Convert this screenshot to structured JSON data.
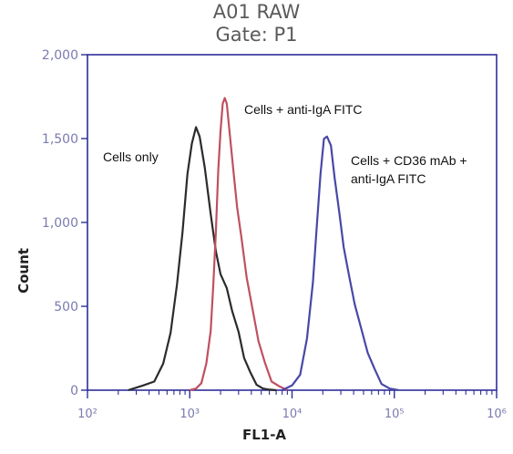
{
  "chart_data": {
    "type": "line",
    "title": "A01 RAW",
    "subtitle": "Gate: P1",
    "xlabel": "FL1-A",
    "ylabel": "Count",
    "x_scale": "log",
    "xlim": [
      100,
      1000000
    ],
    "ylim": [
      0,
      2000
    ],
    "x_ticks": [
      {
        "value": 100,
        "label": "10²"
      },
      {
        "value": 1000,
        "label": "10³"
      },
      {
        "value": 10000,
        "label": "10⁴"
      },
      {
        "value": 100000,
        "label": "10⁵"
      },
      {
        "value": 1000000,
        "label": "10⁶"
      }
    ],
    "y_ticks": [
      {
        "value": 0,
        "label": "0"
      },
      {
        "value": 500,
        "label": "500"
      },
      {
        "value": 1000,
        "label": "1,000"
      },
      {
        "value": 1500,
        "label": "1,500"
      },
      {
        "value": 2000,
        "label": "2,000"
      }
    ],
    "grid": false,
    "legend": "none",
    "series": [
      {
        "color": "#2b2b2b",
        "x": [
          250,
          350,
          450,
          550,
          650,
          750,
          850,
          950,
          1050,
          1150,
          1250,
          1400,
          1600,
          1800,
          2000,
          2300,
          2600,
          3000,
          3400,
          3900,
          4500,
          5200,
          6000,
          7000
        ],
        "y": [
          0,
          20,
          60,
          150,
          350,
          620,
          950,
          1280,
          1480,
          1560,
          1520,
          1320,
          1060,
          820,
          700,
          600,
          480,
          340,
          200,
          100,
          40,
          10,
          3,
          0
        ]
      },
      {
        "color": "#c05060",
        "x": [
          1000,
          1150,
          1300,
          1450,
          1600,
          1700,
          1800,
          1900,
          2000,
          2100,
          2200,
          2300,
          2450,
          2650,
          2900,
          3200,
          3600,
          4100,
          4700,
          5400,
          6300,
          7500,
          9000
        ],
        "y": [
          0,
          10,
          50,
          150,
          360,
          620,
          950,
          1300,
          1550,
          1700,
          1750,
          1700,
          1550,
          1320,
          1100,
          900,
          680,
          480,
          300,
          160,
          60,
          15,
          0
        ]
      },
      {
        "color": "#4848a8",
        "x": [
          8000,
          10000,
          12000,
          14000,
          16000,
          17500,
          19000,
          20500,
          22000,
          24000,
          26000,
          29000,
          32000,
          36000,
          41000,
          47000,
          55000,
          64000,
          75000,
          90000,
          110000
        ],
        "y": [
          0,
          20,
          100,
          300,
          650,
          980,
          1300,
          1490,
          1520,
          1450,
          1280,
          1050,
          860,
          680,
          520,
          370,
          230,
          120,
          45,
          10,
          0
        ]
      }
    ],
    "annotations": [
      {
        "text": "Cells only",
        "series": 0
      },
      {
        "text": "Cells + anti-IgA FITC",
        "series": 1
      },
      {
        "text": "Cells + CD36 mAb +",
        "series": 2
      },
      {
        "text": "anti-IgA FITC",
        "series": 2
      }
    ]
  }
}
